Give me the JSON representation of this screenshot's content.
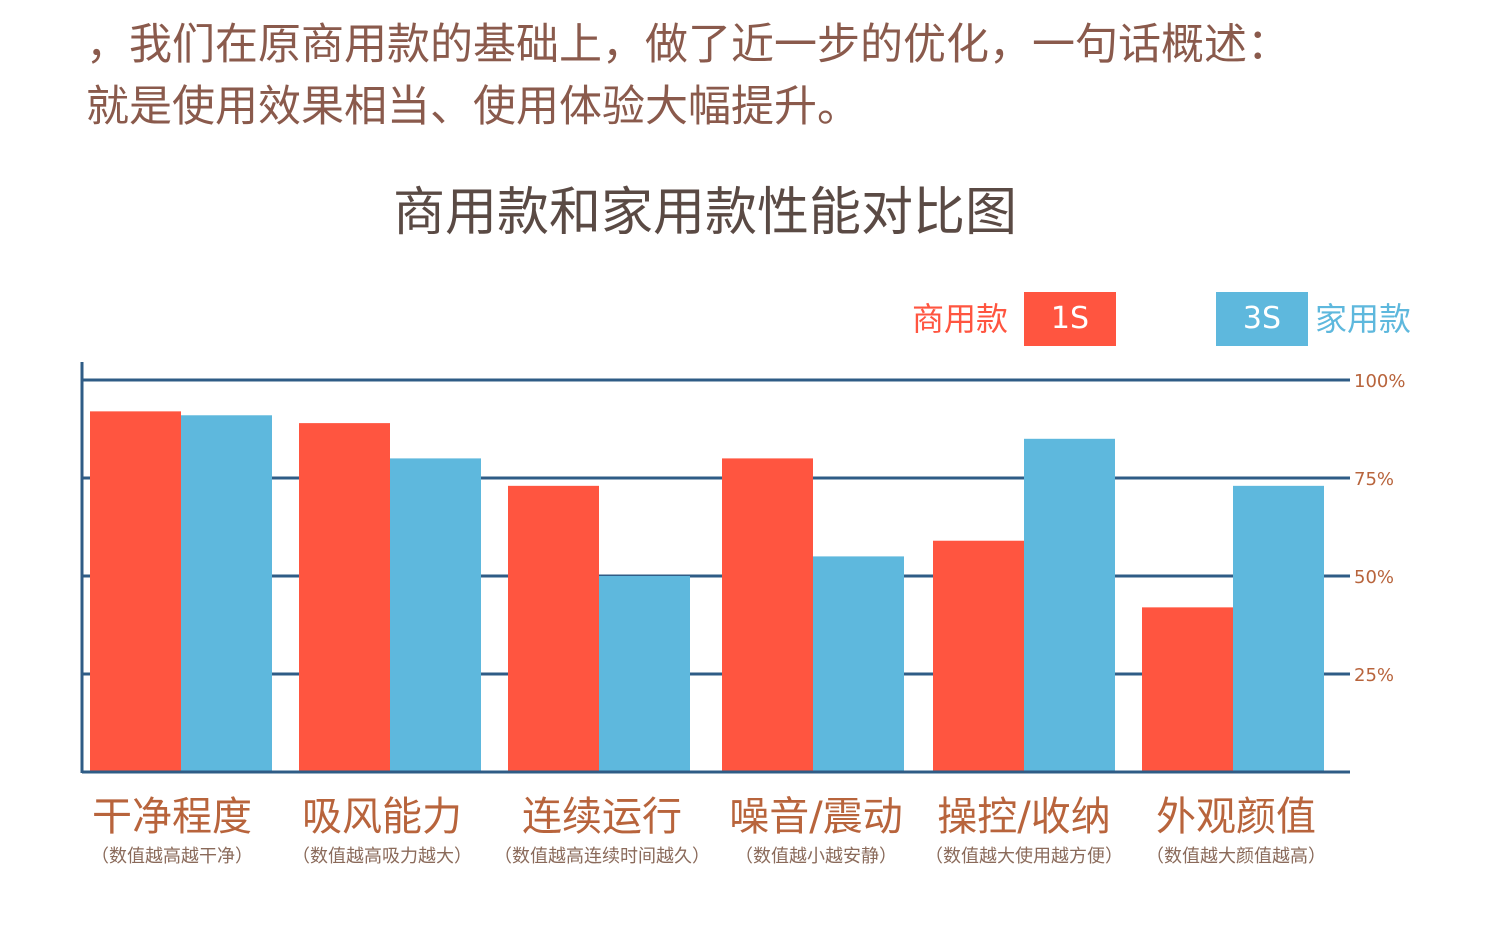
{
  "intro": {
    "line1": "，我们在原商用款的基础上，做了近一步的优化，一句话概述：",
    "line2": "就是使用效果相当、使用体验大幅提升。"
  },
  "colors": {
    "commercial": "#ff5540",
    "home": "#5eb8dd",
    "grid": "#2f5c86"
  },
  "legend": {
    "commercial_label": "商用款",
    "commercial_model": "1S",
    "home_model": "3S",
    "home_label": "家用款"
  },
  "chart_data": {
    "type": "bar",
    "title": "商用款和家用款性能对比图",
    "categories": [
      "干净程度",
      "吸风能力",
      "连续运行",
      "噪音/震动",
      "操控/收纳",
      "外观颜值"
    ],
    "category_notes": [
      "（数值越高越干净）",
      "（数值越高吸力越大）",
      "（数值越高连续时间越久）",
      "（数值越小越安静）",
      "（数值越大使用越方便）",
      "（数值越大颜值越高）"
    ],
    "series": [
      {
        "name": "1S",
        "values": [
          92,
          89,
          73,
          80,
          59,
          42
        ]
      },
      {
        "name": "3S",
        "values": [
          91,
          80,
          50,
          55,
          85,
          73
        ]
      }
    ],
    "y_ticks": [
      25,
      50,
      75,
      100
    ],
    "y_tick_labels": [
      "25%",
      "50%",
      "75%",
      "100%"
    ],
    "ylim": [
      0,
      100
    ],
    "grid": true,
    "legend_position": "top-right"
  }
}
